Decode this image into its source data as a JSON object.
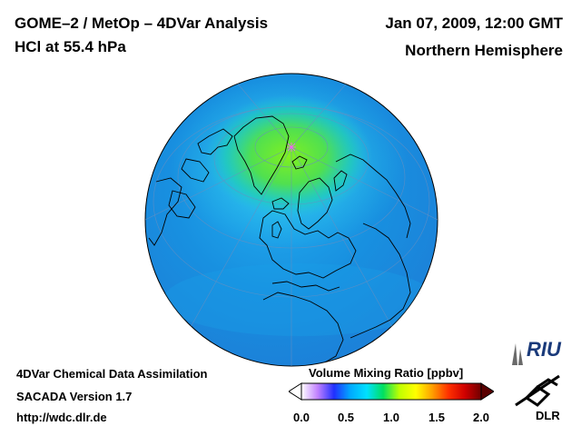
{
  "header": {
    "title_line1": "GOME–2 / MetOp – 4DVar Analysis",
    "title_line2": "HCl at 55.4 hPa",
    "date": "Jan 07, 2009, 12:00 GMT",
    "region": "Northern Hemisphere"
  },
  "footer": {
    "line1": "4DVar Chemical Data Assimilation",
    "line2": "SACADA Version 1.7",
    "line3": "http://wdc.dlr.de"
  },
  "colorbar": {
    "title": "Volume Mixing Ratio [ppbv]",
    "ticks": [
      "0.0",
      "0.5",
      "1.0",
      "1.5",
      "2.0"
    ],
    "colors": [
      "#ffffff",
      "#c080ff",
      "#2030ff",
      "#00aaff",
      "#00e0ff",
      "#00e060",
      "#c0ff00",
      "#ffff00",
      "#ffa000",
      "#ff3000",
      "#d00000",
      "#700000"
    ]
  },
  "logos": {
    "riu": "RIU",
    "dlr": "DLR"
  },
  "map": {
    "ocean_color": "#1a8ad8",
    "high_color": "#70f020"
  }
}
